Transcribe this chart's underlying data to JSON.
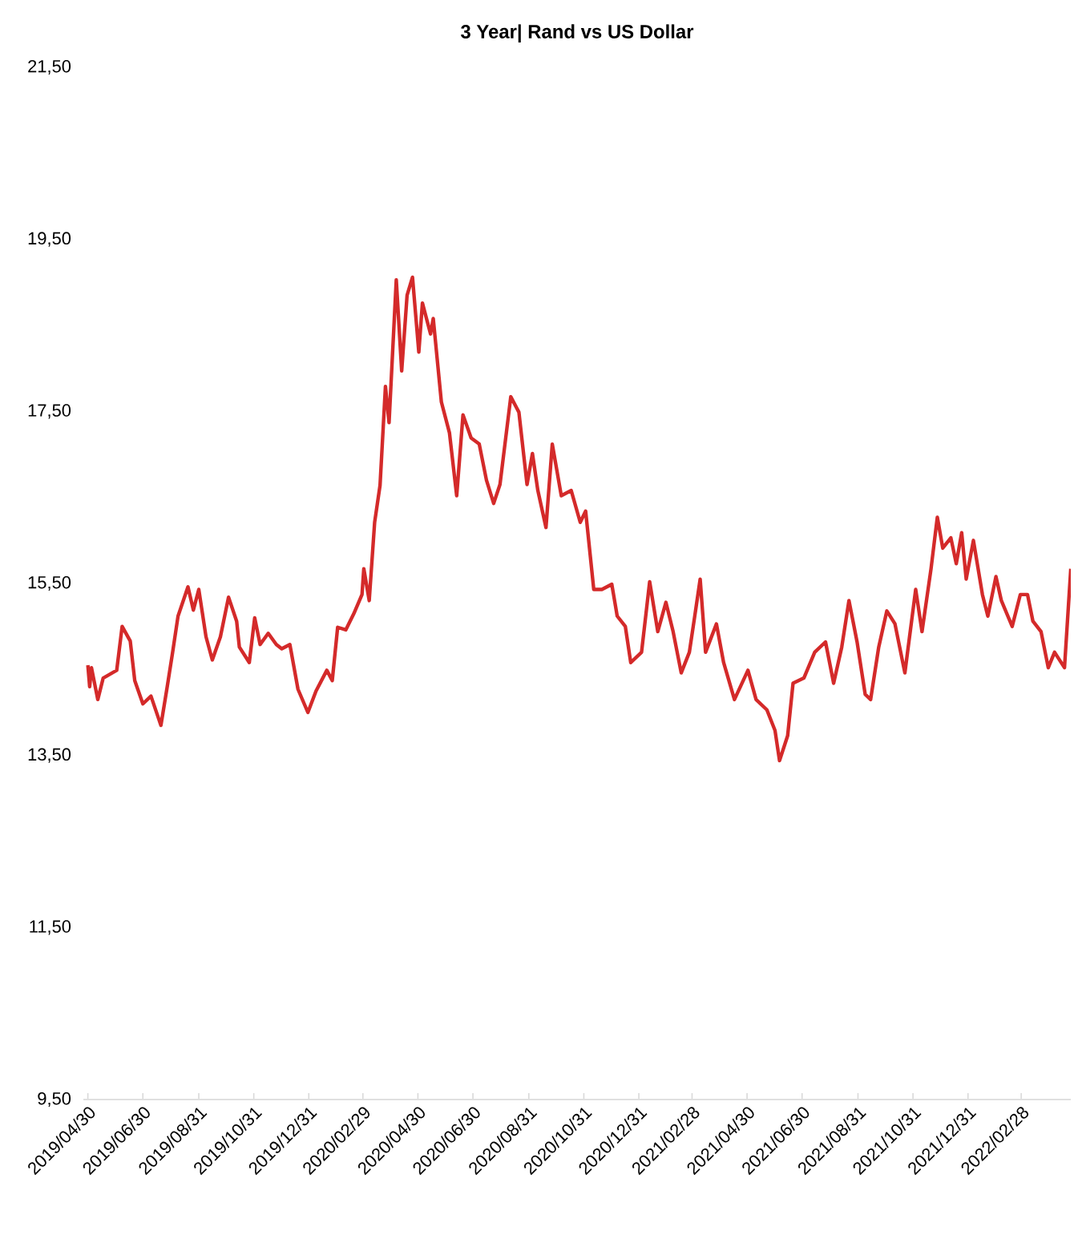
{
  "chart_data": {
    "type": "line",
    "title": "**3 Year| Rand vs US Dollar**",
    "xlim": [
      "2019-04-25",
      "2022-04-24"
    ],
    "ylim": [
      9.5,
      21.5
    ],
    "yticks": [
      {
        "value": 9.5,
        "label": "9,50"
      },
      {
        "value": 11.5,
        "label": "11,50"
      },
      {
        "value": 13.5,
        "label": "13,50"
      },
      {
        "value": 15.5,
        "label": "15,50"
      },
      {
        "value": 17.5,
        "label": "17,50"
      },
      {
        "value": 19.5,
        "label": "19,50"
      },
      {
        "value": 21.5,
        "label": "21,50"
      }
    ],
    "xticks": [
      {
        "value": "2019-04-30",
        "label": "2019/04/30"
      },
      {
        "value": "2019-06-30",
        "label": "2019/06/30"
      },
      {
        "value": "2019-08-31",
        "label": "2019/08/31"
      },
      {
        "value": "2019-10-31",
        "label": "2019/10/31"
      },
      {
        "value": "2019-12-31",
        "label": "2019/12/31"
      },
      {
        "value": "2020-02-29",
        "label": "2020/02/29"
      },
      {
        "value": "2020-04-30",
        "label": "2020/04/30"
      },
      {
        "value": "2020-06-30",
        "label": "2020/06/30"
      },
      {
        "value": "2020-08-31",
        "label": "2020/08/31"
      },
      {
        "value": "2020-10-31",
        "label": "2020/10/31"
      },
      {
        "value": "2020-12-31",
        "label": "2020/12/31"
      },
      {
        "value": "2021-02-28",
        "label": "2021/02/28"
      },
      {
        "value": "2021-04-30",
        "label": "2021/04/30"
      },
      {
        "value": "2021-06-30",
        "label": "2021/06/30"
      },
      {
        "value": "2021-08-31",
        "label": "2021/08/31"
      },
      {
        "value": "2021-10-31",
        "label": "2021/10/31"
      },
      {
        "value": "2021-12-31",
        "label": "2021/12/31"
      },
      {
        "value": "2022-02-28",
        "label": "2022/02/28"
      }
    ],
    "x": [
      "2019-04-30",
      "2019-05-02",
      "2019-05-04",
      "2019-05-11",
      "2019-05-17",
      "2019-06-01",
      "2019-06-07",
      "2019-06-16",
      "2019-06-21",
      "2019-06-30",
      "2019-07-09",
      "2019-07-20",
      "2019-07-27",
      "2019-08-02",
      "2019-08-08",
      "2019-08-19",
      "2019-08-25",
      "2019-08-31",
      "2019-09-08",
      "2019-09-15",
      "2019-09-24",
      "2019-10-03",
      "2019-10-12",
      "2019-10-15",
      "2019-10-26",
      "2019-11-01",
      "2019-11-07",
      "2019-11-16",
      "2019-11-25",
      "2019-12-01",
      "2019-12-10",
      "2019-12-19",
      "2019-12-30",
      "2020-01-08",
      "2020-01-20",
      "2020-01-26",
      "2020-02-01",
      "2020-02-10",
      "2020-02-19",
      "2020-02-28",
      "2020-03-01",
      "2020-03-07",
      "2020-03-13",
      "2020-03-19",
      "2020-03-25",
      "2020-03-29",
      "2020-04-06",
      "2020-04-12",
      "2020-04-18",
      "2020-04-24",
      "2020-05-01",
      "2020-05-05",
      "2020-05-14",
      "2020-05-17",
      "2020-05-26",
      "2020-06-04",
      "2020-06-12",
      "2020-06-19",
      "2020-06-28",
      "2020-07-07",
      "2020-07-15",
      "2020-07-23",
      "2020-07-30",
      "2020-08-11",
      "2020-08-20",
      "2020-08-29",
      "2020-09-04",
      "2020-09-10",
      "2020-09-19",
      "2020-09-26",
      "2020-10-06",
      "2020-10-17",
      "2020-10-27",
      "2020-11-02",
      "2020-11-11",
      "2020-11-20",
      "2020-12-01",
      "2020-12-07",
      "2020-12-16",
      "2020-12-22",
      "2021-01-03",
      "2021-01-12",
      "2021-01-21",
      "2021-01-30",
      "2021-02-07",
      "2021-02-16",
      "2021-02-25",
      "2021-03-03",
      "2021-03-09",
      "2021-03-15",
      "2021-03-27",
      "2021-04-04",
      "2021-04-16",
      "2021-05-01",
      "2021-05-10",
      "2021-05-22",
      "2021-05-31",
      "2021-06-05",
      "2021-06-14",
      "2021-06-20",
      "2021-07-02",
      "2021-07-14",
      "2021-07-26",
      "2021-08-04",
      "2021-08-13",
      "2021-08-21",
      "2021-08-30",
      "2021-09-08",
      "2021-09-14",
      "2021-09-23",
      "2021-10-02",
      "2021-10-11",
      "2021-10-22",
      "2021-11-03",
      "2021-11-10",
      "2021-11-20",
      "2021-11-27",
      "2021-12-03",
      "2021-12-12",
      "2021-12-18",
      "2021-12-24",
      "2021-12-29",
      "2022-01-06",
      "2022-01-16",
      "2022-01-22",
      "2022-01-31",
      "2022-02-06",
      "2022-02-18",
      "2022-02-27",
      "2022-03-07",
      "2022-03-13",
      "2022-03-22",
      "2022-03-30",
      "2022-04-06",
      "2022-04-17",
      "2022-04-24"
    ],
    "series": [
      {
        "color": "#d42a2a",
        "values": [
          14.55,
          14.3,
          14.52,
          14.15,
          14.4,
          14.49,
          15.0,
          14.83,
          14.37,
          14.1,
          14.19,
          13.85,
          14.3,
          14.7,
          15.12,
          15.46,
          15.19,
          15.43,
          14.88,
          14.61,
          14.88,
          15.34,
          15.06,
          14.76,
          14.58,
          15.1,
          14.79,
          14.92,
          14.79,
          14.74,
          14.79,
          14.27,
          14.0,
          14.25,
          14.49,
          14.37,
          14.99,
          14.96,
          15.15,
          15.37,
          15.67,
          15.3,
          16.21,
          16.64,
          17.79,
          17.37,
          19.03,
          17.97,
          18.85,
          19.06,
          18.19,
          18.76,
          18.4,
          18.58,
          17.61,
          17.25,
          16.52,
          17.46,
          17.19,
          17.12,
          16.7,
          16.43,
          16.65,
          17.67,
          17.49,
          16.65,
          17.01,
          16.58,
          16.15,
          17.12,
          16.52,
          16.58,
          16.21,
          16.34,
          15.43,
          15.43,
          15.49,
          15.12,
          15.0,
          14.58,
          14.7,
          15.52,
          14.94,
          15.28,
          14.94,
          14.46,
          14.7,
          15.12,
          15.55,
          14.7,
          15.03,
          14.58,
          14.15,
          14.49,
          14.15,
          14.03,
          13.79,
          13.44,
          13.73,
          14.34,
          14.4,
          14.7,
          14.82,
          14.34,
          14.76,
          15.3,
          14.82,
          14.21,
          14.15,
          14.76,
          15.18,
          15.03,
          14.46,
          15.43,
          14.94,
          15.67,
          16.27,
          15.91,
          16.03,
          15.73,
          16.09,
          15.55,
          16.0,
          15.37,
          15.12,
          15.58,
          15.3,
          15.0,
          15.37,
          15.37,
          15.06,
          14.94,
          14.52,
          14.7,
          14.52,
          15.67
        ]
      }
    ],
    "grid": false,
    "line_style": "solid"
  }
}
